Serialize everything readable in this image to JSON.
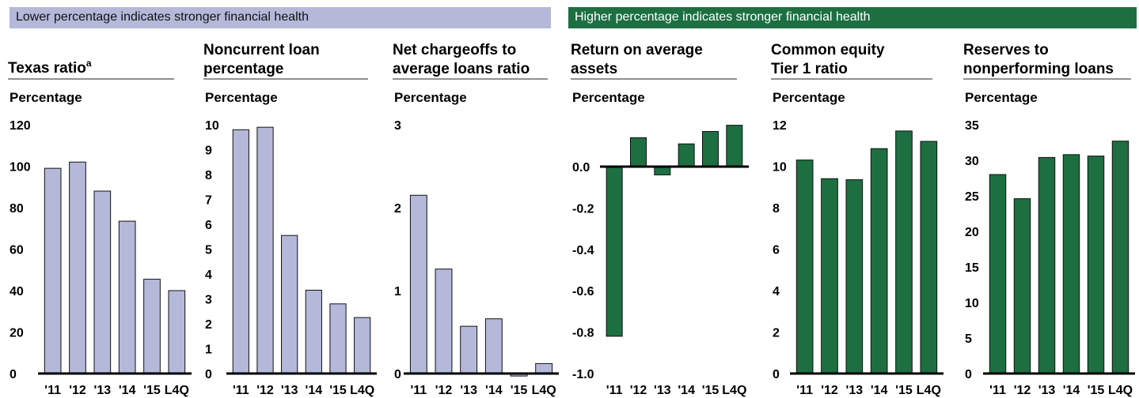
{
  "banners": {
    "left": "Lower percentage indicates stronger financial health",
    "right": "Higher percentage indicates stronger financial health"
  },
  "colors": {
    "lower_is_better": "#b4b9da",
    "higher_is_better": "#1d6f42"
  },
  "chart_data": [
    {
      "type": "bar",
      "title_lines": [
        "Texas ratio"
      ],
      "title_superscript": "a",
      "ylabel": "Percentage",
      "categories": [
        "'11",
        "'12",
        "'13",
        "'14",
        "'15",
        "L4Q"
      ],
      "values": [
        99,
        102,
        88,
        73.5,
        45.5,
        40
      ],
      "ylim": [
        0,
        120
      ],
      "yticks": [
        "0",
        "20",
        "40",
        "60",
        "80",
        "100",
        "120"
      ],
      "tick_values": [
        0,
        20,
        40,
        60,
        80,
        100,
        120
      ],
      "color": "#b4b9da"
    },
    {
      "type": "bar",
      "title_lines": [
        "Noncurrent loan",
        "percentage"
      ],
      "ylabel": "Percentage",
      "categories": [
        "'11",
        "'12",
        "'13",
        "'14",
        "'15",
        "L4Q"
      ],
      "values": [
        9.8,
        9.9,
        5.55,
        3.35,
        2.8,
        2.25
      ],
      "ylim": [
        0,
        10
      ],
      "yticks": [
        "0",
        "1",
        "2",
        "3",
        "4",
        "5",
        "6",
        "7",
        "8",
        "9",
        "10"
      ],
      "tick_values": [
        0,
        1,
        2,
        3,
        4,
        5,
        6,
        7,
        8,
        9,
        10
      ],
      "color": "#b4b9da"
    },
    {
      "type": "bar",
      "title_lines": [
        "Net chargeoffs to",
        "average loans ratio"
      ],
      "ylabel": "Percentage",
      "categories": [
        "'11",
        "'12",
        "'13",
        "'14",
        "'15",
        "L4Q"
      ],
      "values": [
        2.15,
        1.26,
        0.57,
        0.66,
        -0.03,
        0.12
      ],
      "ylim": [
        0,
        3
      ],
      "yticks": [
        "0",
        "1",
        "2",
        "3"
      ],
      "tick_values": [
        0,
        1,
        2,
        3
      ],
      "color": "#b4b9da"
    },
    {
      "type": "bar",
      "title_lines": [
        "Return on average",
        "assets"
      ],
      "ylabel": "Percentage",
      "categories": [
        "'11",
        "'12",
        "'13",
        "'14",
        "'15",
        "L4Q"
      ],
      "values": [
        -0.82,
        0.14,
        -0.04,
        0.11,
        0.17,
        0.2
      ],
      "ylim": [
        -1.0,
        0.2
      ],
      "yticks": [
        "-1.0",
        "-0.8",
        "-0.6",
        "-0.4",
        "-0.2",
        "0.0"
      ],
      "tick_values": [
        -1.0,
        -0.8,
        -0.6,
        -0.4,
        -0.2,
        0.0
      ],
      "color": "#1d6f42"
    },
    {
      "type": "bar",
      "title_lines": [
        "Common equity",
        "Tier 1 ratio"
      ],
      "ylabel": "Percentage",
      "categories": [
        "'11",
        "'12",
        "'13",
        "'14",
        "'15",
        "L4Q"
      ],
      "values": [
        10.3,
        9.4,
        9.35,
        10.85,
        11.7,
        11.2
      ],
      "ylim": [
        0,
        12
      ],
      "yticks": [
        "0",
        "2",
        "4",
        "6",
        "8",
        "10",
        "12"
      ],
      "tick_values": [
        0,
        2,
        4,
        6,
        8,
        10,
        12
      ],
      "color": "#1d6f42"
    },
    {
      "type": "bar",
      "title_lines": [
        "Reserves to",
        "nonperforming loans"
      ],
      "ylabel": "Percentage",
      "categories": [
        "'11",
        "'12",
        "'13",
        "'14",
        "'15",
        "L4Q"
      ],
      "values": [
        28,
        24.6,
        30.4,
        30.8,
        30.6,
        32.7
      ],
      "ylim": [
        0,
        35
      ],
      "yticks": [
        "0",
        "5",
        "10",
        "15",
        "20",
        "25",
        "30",
        "35"
      ],
      "tick_values": [
        0,
        5,
        10,
        15,
        20,
        25,
        30,
        35
      ],
      "color": "#1d6f42"
    }
  ]
}
